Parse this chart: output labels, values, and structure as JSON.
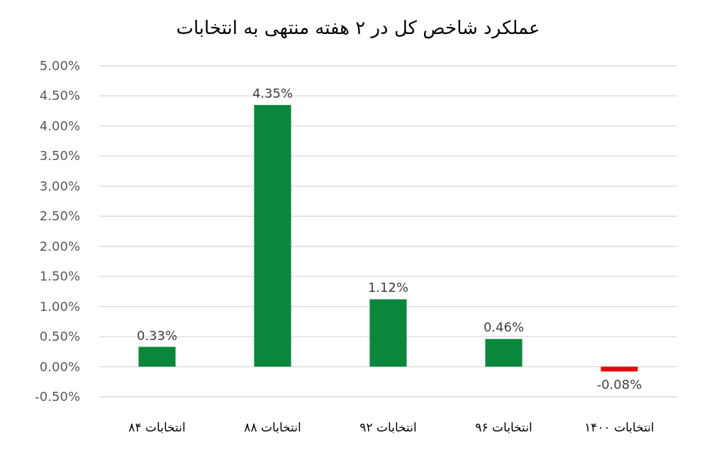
{
  "chart_data": {
    "type": "bar",
    "title": "عملکرد شاخص کل در ۲ هفته منتهی به انتخابات",
    "categories": [
      "انتخابات ۸۴",
      "انتخابات ۸۸",
      "انتخابات ۹۲",
      "انتخابات ۹۶",
      "انتخابات ۱۴۰۰"
    ],
    "values": [
      0.33,
      4.35,
      1.12,
      0.46,
      -0.08
    ],
    "colors": [
      "#0a873d",
      "#0a873d",
      "#0a873d",
      "#0a873d",
      "#e50b0b"
    ],
    "value_labels": [
      "0.33%",
      "4.35%",
      "1.12%",
      "0.46%",
      "-0.08%"
    ],
    "ylim": [
      -0.5,
      5
    ],
    "yticks": [
      {
        "value": -0.5,
        "label": "-0.50%"
      },
      {
        "value": 0,
        "label": "0.00%"
      },
      {
        "value": 0.5,
        "label": "0.50%"
      },
      {
        "value": 1,
        "label": "1.00%"
      },
      {
        "value": 1.5,
        "label": "1.50%"
      },
      {
        "value": 2,
        "label": "2.00%"
      },
      {
        "value": 2.5,
        "label": "2.50%"
      },
      {
        "value": 3,
        "label": "3.00%"
      },
      {
        "value": 3.5,
        "label": "3.50%"
      },
      {
        "value": 4,
        "label": "4.00%"
      },
      {
        "value": 4.5,
        "label": "4.50%"
      },
      {
        "value": 5,
        "label": "5.00%"
      }
    ],
    "grid": "y"
  }
}
